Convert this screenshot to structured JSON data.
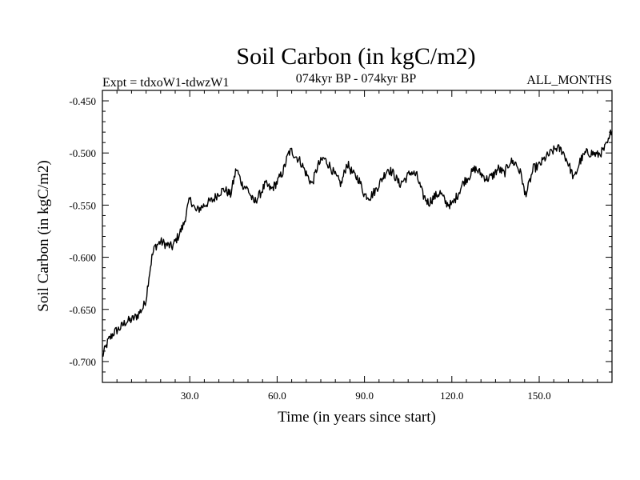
{
  "chart_data": {
    "type": "line",
    "title": "Soil Carbon (in kgC/m2)",
    "experiment_label": "Expt = tdxoW1-tdwzW1",
    "period_label": "074kyr BP - 074kyr BP",
    "months_label": "ALL_MONTHS",
    "xlabel": "Time (in years since start)",
    "ylabel": "Soil Carbon (in kgC/m2)",
    "xlim": [
      0,
      175
    ],
    "ylim": [
      -0.72,
      -0.44
    ],
    "x_ticks": [
      30,
      60,
      90,
      120,
      150
    ],
    "x_tick_labels": [
      "30.0",
      "60.0",
      "90.0",
      "120.0",
      "150.0"
    ],
    "y_ticks": [
      -0.45,
      -0.5,
      -0.55,
      -0.6,
      -0.65,
      -0.7
    ],
    "y_tick_labels": [
      "-0.450",
      "-0.500",
      "-0.550",
      "-0.600",
      "-0.650",
      "-0.700"
    ],
    "series": [
      {
        "name": "Soil Carbon",
        "color": "#000000",
        "x": [
          0,
          2,
          4,
          6,
          8,
          10,
          12,
          14,
          15,
          16,
          17,
          18,
          20,
          22,
          24,
          26,
          28,
          29,
          30,
          31,
          32,
          34,
          36,
          38,
          40,
          42,
          44,
          46,
          48,
          50,
          52,
          54,
          56,
          58,
          60,
          62,
          64,
          65,
          66,
          68,
          70,
          72,
          74,
          76,
          78,
          80,
          82,
          84,
          86,
          88,
          90,
          92,
          94,
          96,
          98,
          100,
          102,
          104,
          106,
          108,
          110,
          112,
          114,
          116,
          118,
          120,
          122,
          124,
          126,
          128,
          130,
          132,
          134,
          136,
          138,
          140,
          142,
          144,
          145,
          146,
          148,
          150,
          152,
          154,
          156,
          158,
          160,
          162,
          164,
          166,
          168,
          170,
          172,
          174,
          175
        ],
        "values": [
          -0.695,
          -0.68,
          -0.672,
          -0.668,
          -0.662,
          -0.66,
          -0.656,
          -0.648,
          -0.64,
          -0.618,
          -0.6,
          -0.59,
          -0.585,
          -0.588,
          -0.59,
          -0.58,
          -0.568,
          -0.555,
          -0.545,
          -0.548,
          -0.556,
          -0.552,
          -0.548,
          -0.545,
          -0.538,
          -0.535,
          -0.54,
          -0.515,
          -0.53,
          -0.535,
          -0.548,
          -0.54,
          -0.53,
          -0.535,
          -0.528,
          -0.518,
          -0.5,
          -0.498,
          -0.502,
          -0.508,
          -0.52,
          -0.53,
          -0.512,
          -0.505,
          -0.512,
          -0.522,
          -0.53,
          -0.51,
          -0.52,
          -0.525,
          -0.54,
          -0.542,
          -0.535,
          -0.525,
          -0.515,
          -0.52,
          -0.53,
          -0.525,
          -0.518,
          -0.522,
          -0.54,
          -0.548,
          -0.542,
          -0.538,
          -0.548,
          -0.55,
          -0.54,
          -0.528,
          -0.522,
          -0.515,
          -0.52,
          -0.525,
          -0.522,
          -0.515,
          -0.52,
          -0.508,
          -0.51,
          -0.522,
          -0.54,
          -0.535,
          -0.515,
          -0.512,
          -0.505,
          -0.5,
          -0.495,
          -0.498,
          -0.51,
          -0.525,
          -0.508,
          -0.5,
          -0.5,
          -0.502,
          -0.498,
          -0.488,
          -0.475
        ]
      }
    ]
  }
}
